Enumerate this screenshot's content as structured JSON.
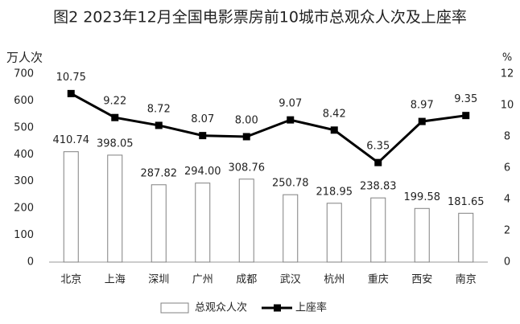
{
  "chart_data": {
    "type": "combo",
    "title": "图2  2023年12月全国电影票房前10城市总观众人次及上座率",
    "y_label": "万人次",
    "y2_label": "%",
    "categories": [
      "北京",
      "上海",
      "深圳",
      "广州",
      "成都",
      "武汉",
      "杭州",
      "重庆",
      "西安",
      "南京"
    ],
    "series": [
      {
        "name": "总观众人次",
        "type": "bar",
        "color": "#ffffff",
        "edge": "#808080",
        "values": [
          410.74,
          398.05,
          287.82,
          294.0,
          308.76,
          250.78,
          218.95,
          238.83,
          199.58,
          181.65
        ],
        "value_labels": [
          "410.74",
          "398.05",
          "287.82",
          "294.00",
          "308.76",
          "250.78",
          "218.95",
          "238.83",
          "199.58",
          "181.65"
        ]
      },
      {
        "name": "上座率",
        "type": "line",
        "axis": "y2",
        "color": "#000000",
        "values": [
          10.75,
          9.22,
          8.72,
          8.07,
          8.0,
          9.07,
          8.42,
          6.35,
          8.97,
          9.35
        ],
        "value_labels": [
          "10.75",
          "9.22",
          "8.72",
          "8.07",
          "8.00",
          "9.07",
          "8.42",
          "6.35",
          "8.97",
          "9.35"
        ]
      }
    ],
    "ylim": [
      0,
      700
    ],
    "yticks": [
      0,
      100,
      200,
      300,
      400,
      500,
      600,
      700
    ],
    "y2lim": [
      0,
      12
    ],
    "y2ticks": [
      0,
      2,
      4,
      6,
      8,
      10,
      12
    ],
    "grid": false,
    "legend": "bottom"
  }
}
